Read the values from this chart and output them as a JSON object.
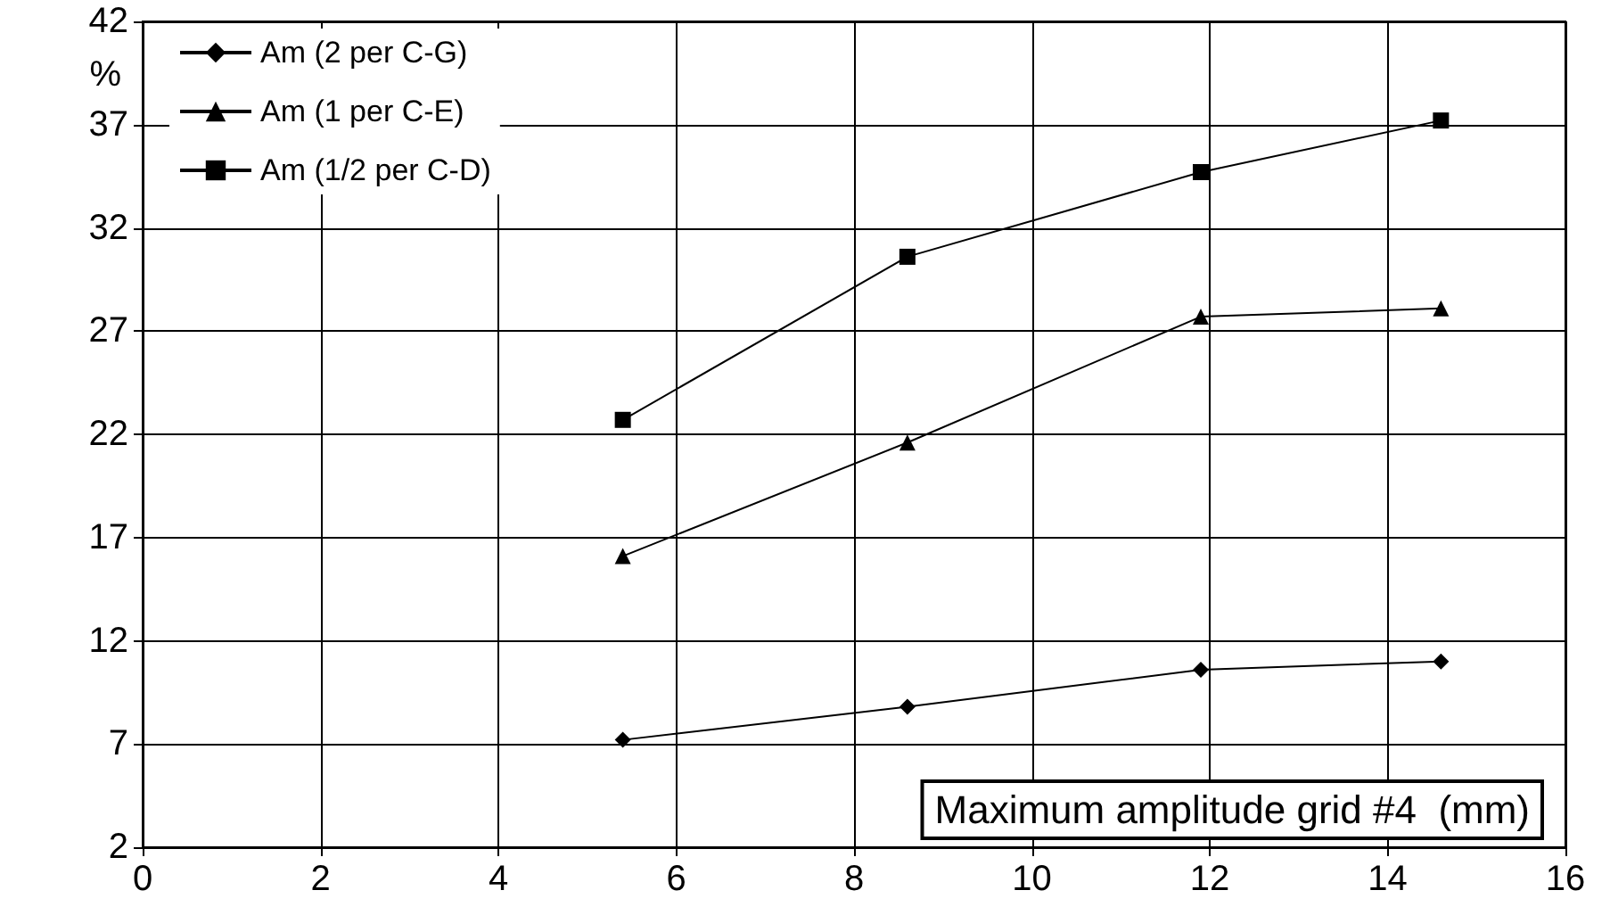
{
  "chart_data": {
    "type": "line",
    "xlabel": "Maximum amplitude grid #4  (mm)",
    "ylabel": "%",
    "x": [
      5.4,
      8.6,
      11.9,
      14.6
    ],
    "series": [
      {
        "name": "Am (2 per C-G)",
        "color": "#000000",
        "marker": "diamond",
        "values": [
          7.2,
          8.8,
          10.6,
          11.0
        ]
      },
      {
        "name": "Am (1 per C-E)",
        "color": "#000000",
        "marker": "triangle",
        "values": [
          16.1,
          21.6,
          27.7,
          28.1
        ]
      },
      {
        "name": "Am (1/2 per C-D)",
        "color": "#000000",
        "marker": "square",
        "values": [
          22.7,
          30.6,
          34.7,
          37.2
        ]
      }
    ],
    "xlim": [
      0,
      16
    ],
    "xticks": [
      0,
      2,
      4,
      6,
      8,
      10,
      12,
      14,
      16
    ],
    "ylim": [
      2,
      42
    ],
    "yticks": [
      2,
      7,
      12,
      17,
      22,
      27,
      32,
      37,
      42
    ],
    "grid": true,
    "legend": "top left",
    "line_style": "solid"
  }
}
